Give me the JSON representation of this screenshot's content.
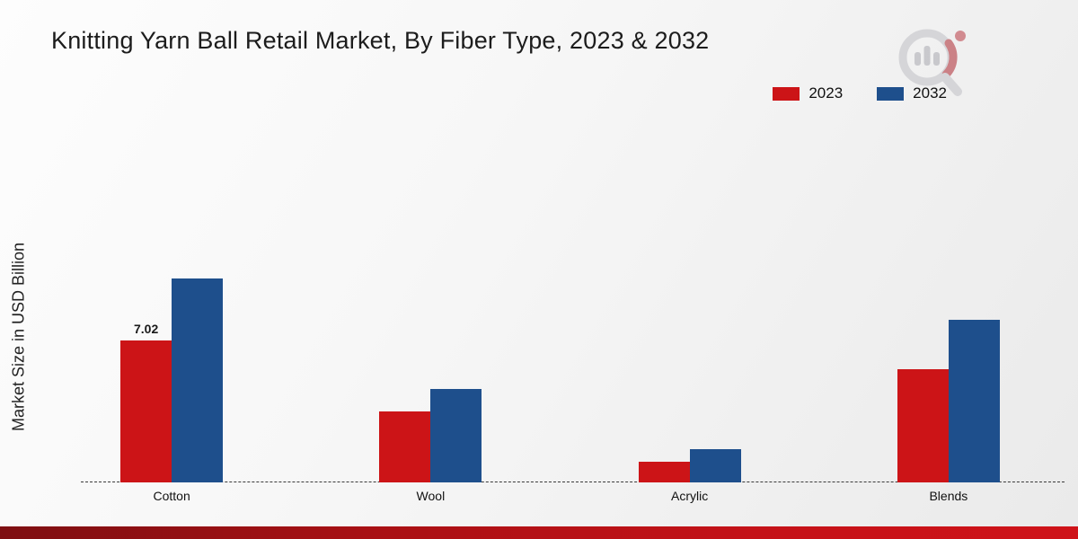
{
  "title": "Knitting Yarn Ball Retail Market, By Fiber Type, 2023 & 2032",
  "ylabel": "Market Size in USD Billion",
  "colors": {
    "series_2023": "#cc1417",
    "series_2032": "#1e4f8c",
    "footer": "#c41218"
  },
  "chart_data": {
    "type": "bar",
    "title": "Knitting Yarn Ball Retail Market, By Fiber Type, 2023 & 2032",
    "xlabel": "",
    "ylabel": "Market Size in USD Billion",
    "categories": [
      "Cotton",
      "Wool",
      "Acrylic",
      "Blends"
    ],
    "series": [
      {
        "name": "2023",
        "color": "#cc1417",
        "values": [
          7.02,
          3.5,
          1.0,
          5.6
        ]
      },
      {
        "name": "2032",
        "color": "#1e4f8c",
        "values": [
          10.05,
          4.6,
          1.65,
          8.05
        ]
      }
    ],
    "annotations": [
      {
        "series": "2023",
        "category": "Cotton",
        "text": "7.02"
      }
    ],
    "ylim": [
      0,
      18.5
    ],
    "grid": false,
    "legend_position": "top-right",
    "baseline": "dashed"
  }
}
